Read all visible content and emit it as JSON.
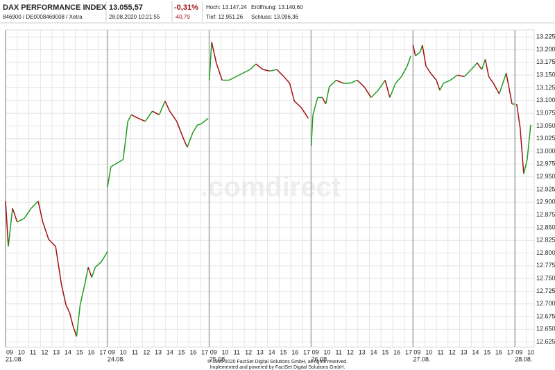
{
  "header": {
    "title": "DAX PERFORMANCE INDEX",
    "ids": "846900 / DE0008469008 / Xetra",
    "price": "13.055,57",
    "time": "28.08.2020 10:21:55",
    "change_pct": "-0,31%",
    "change": "-40,79",
    "high": "Hoch: 13.147,24",
    "open": "Eröffnung: 13.140,60",
    "low": "Tief: 12.951,26",
    "close": "Schluss: 13.096,36"
  },
  "footer": {
    "line1": "© 1996-2020 FactSet Digital Solutions GmbH, all rights reserved.",
    "line2": "Implemented and powered by FactSet Digital Solutions GmbH."
  },
  "watermark": ".comdirect",
  "chart_data": {
    "type": "line",
    "up_color": "#1f9a1f",
    "down_color": "#a01010",
    "grid": true,
    "x": [
      0,
      0.24,
      0.6,
      1.0,
      1.6,
      2.2,
      2.8,
      3.2,
      3.7,
      4.3,
      4.8,
      5.2,
      5.5,
      5.8,
      6.1,
      6.4,
      6.8,
      7.1,
      7.4,
      7.7,
      8.2,
      8.5,
      8.75,
      null,
      8.75,
      9.05,
      9.6,
      10.1,
      10.5,
      10.8,
      11.4,
      12.0,
      12.6,
      13.2,
      13.7,
      14.1,
      14.7,
      15.3,
      15.6,
      16.1,
      16.5,
      16.8,
      17.4,
      null,
      17.5,
      17.7,
      18.1,
      18.6,
      19.2,
      19.8,
      20.4,
      21.0,
      21.5,
      22.1,
      22.7,
      23.3,
      23.9,
      24.4,
      24.8,
      25.4,
      26.0,
      null,
      26.25,
      26.4,
      26.8,
      27.2,
      27.5,
      27.8,
      28.4,
      29.0,
      29.6,
      30.2,
      30.8,
      31.4,
      32.0,
      32.6,
      33.0,
      33.5,
      34.0,
      34.5,
      34.8,
      null,
      35.0,
      35.2,
      35.6,
      35.8,
      36.1,
      36.5,
      37.0,
      37.3,
      37.6,
      38.2,
      38.8,
      39.4,
      40.0,
      40.5,
      40.9,
      41.2,
      41.5,
      41.9,
      42.4,
      43.0,
      43.5,
      43.75,
      null,
      43.9,
      44.2,
      44.5,
      44.8,
      45.1
    ],
    "series": [
      {
        "values": [
          12902,
          12813,
          12888,
          12861,
          12868,
          12888,
          12902,
          12861,
          12827,
          12813,
          12738,
          12697,
          12683,
          12656,
          12636,
          12697,
          12738,
          12772,
          12752,
          12772,
          12782,
          12793,
          12803,
          null,
          12929,
          12970,
          12977,
          12984,
          13059,
          13072,
          13065,
          13059,
          13079,
          13072,
          13099,
          13079,
          13059,
          13024,
          13008,
          13038,
          13052,
          13054,
          13065,
          null,
          13140,
          13215,
          13174,
          13140,
          13140,
          13147,
          13154,
          13161,
          13172,
          13161,
          13158,
          13161,
          13147,
          13134,
          13099,
          13086,
          13065,
          null,
          13011,
          13072,
          13106,
          13106,
          13093,
          13127,
          13140,
          13134,
          13134,
          13140,
          13127,
          13106,
          13120,
          13140,
          13106,
          13134,
          13147,
          13168,
          13188,
          null,
          13209,
          13188,
          13195,
          13209,
          13168,
          13154,
          13140,
          13120,
          13134,
          13140,
          13150,
          13147,
          13161,
          13174,
          13161,
          13181,
          13147,
          13134,
          13113,
          13154,
          13093,
          13093,
          null,
          13093,
          13045,
          12956,
          12984,
          13052
        ]
      }
    ],
    "xlim": [
      0,
      45.4
    ],
    "ylim": [
      12615,
      13239
    ],
    "xticks": [
      {
        "value": 0,
        "label": "09"
      },
      {
        "value": 1,
        "label": "10"
      },
      {
        "value": 2,
        "label": "11"
      },
      {
        "value": 3,
        "label": "12"
      },
      {
        "value": 4,
        "label": "13"
      },
      {
        "value": 5,
        "label": "14"
      },
      {
        "value": 6,
        "label": "15"
      },
      {
        "value": 7,
        "label": "16"
      },
      {
        "value": 8,
        "label": "17"
      },
      {
        "value": 8.75,
        "label": "09"
      },
      {
        "value": 9.75,
        "label": "10"
      },
      {
        "value": 10.75,
        "label": "11"
      },
      {
        "value": 11.75,
        "label": "12"
      },
      {
        "value": 12.75,
        "label": "13"
      },
      {
        "value": 13.75,
        "label": "14"
      },
      {
        "value": 14.75,
        "label": "15"
      },
      {
        "value": 15.75,
        "label": "16"
      },
      {
        "value": 16.75,
        "label": "17"
      },
      {
        "value": 17.5,
        "label": "09"
      },
      {
        "value": 18.5,
        "label": "10"
      },
      {
        "value": 19.5,
        "label": "11"
      },
      {
        "value": 20.5,
        "label": "12"
      },
      {
        "value": 21.5,
        "label": "13"
      },
      {
        "value": 22.5,
        "label": "14"
      },
      {
        "value": 23.5,
        "label": "15"
      },
      {
        "value": 24.5,
        "label": "16"
      },
      {
        "value": 25.5,
        "label": "17"
      },
      {
        "value": 26.25,
        "label": "09"
      },
      {
        "value": 27.25,
        "label": "10"
      },
      {
        "value": 28.25,
        "label": "11"
      },
      {
        "value": 29.25,
        "label": "12"
      },
      {
        "value": 30.25,
        "label": "13"
      },
      {
        "value": 31.25,
        "label": "14"
      },
      {
        "value": 32.25,
        "label": "15"
      },
      {
        "value": 33.25,
        "label": "16"
      },
      {
        "value": 34.25,
        "label": "17"
      },
      {
        "value": 35,
        "label": "09"
      },
      {
        "value": 36,
        "label": "10"
      },
      {
        "value": 37,
        "label": "11"
      },
      {
        "value": 38,
        "label": "12"
      },
      {
        "value": 39,
        "label": "13"
      },
      {
        "value": 40,
        "label": "14"
      },
      {
        "value": 41,
        "label": "15"
      },
      {
        "value": 42,
        "label": "16"
      },
      {
        "value": 43,
        "label": "17"
      },
      {
        "value": 43.75,
        "label": "09"
      },
      {
        "value": 44.75,
        "label": "10"
      }
    ],
    "date_ticks": [
      {
        "value": 0,
        "label": "21.08."
      },
      {
        "value": 8.75,
        "label": "24.08."
      },
      {
        "value": 17.5,
        "label": "25.08."
      },
      {
        "value": 26.25,
        "label": "26.08."
      },
      {
        "value": 35,
        "label": "27.08."
      },
      {
        "value": 43.75,
        "label": "28.08."
      }
    ],
    "yticks": [
      {
        "value": 12625,
        "label": "12.625"
      },
      {
        "value": 12650,
        "label": "12.650"
      },
      {
        "value": 12675,
        "label": "12.675"
      },
      {
        "value": 12700,
        "label": "12.700"
      },
      {
        "value": 12725,
        "label": "12.725"
      },
      {
        "value": 12750,
        "label": "12.750"
      },
      {
        "value": 12775,
        "label": "12.775"
      },
      {
        "value": 12800,
        "label": "12.800"
      },
      {
        "value": 12825,
        "label": "12.825"
      },
      {
        "value": 12850,
        "label": "12.850"
      },
      {
        "value": 12875,
        "label": "12.875"
      },
      {
        "value": 12900,
        "label": "12.900"
      },
      {
        "value": 12925,
        "label": "12.925"
      },
      {
        "value": 12950,
        "label": "12.950"
      },
      {
        "value": 12975,
        "label": "12.975"
      },
      {
        "value": 13000,
        "label": "13.000"
      },
      {
        "value": 13025,
        "label": "13.025"
      },
      {
        "value": 13050,
        "label": "13.050"
      },
      {
        "value": 13075,
        "label": "13.075"
      },
      {
        "value": 13100,
        "label": "13.100"
      },
      {
        "value": 13125,
        "label": "13.125"
      },
      {
        "value": 13150,
        "label": "13.150"
      },
      {
        "value": 13175,
        "label": "13.175"
      },
      {
        "value": 13200,
        "label": "13.200"
      },
      {
        "value": 13225,
        "label": "13.225"
      }
    ]
  }
}
